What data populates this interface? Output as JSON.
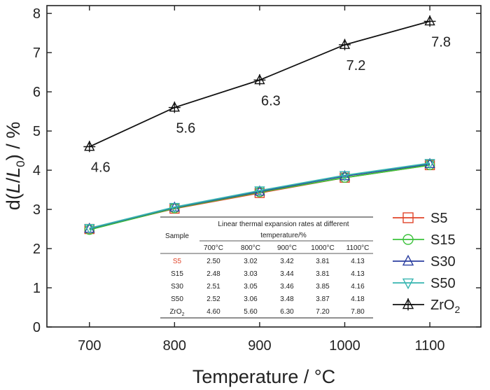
{
  "chart_data": {
    "type": "line",
    "xlabel": "Temperature / °C",
    "ylabel_parts": [
      "d(",
      "L",
      "/",
      "L",
      "0",
      ") / %"
    ],
    "x": [
      700,
      800,
      900,
      1000,
      1100
    ],
    "xticks": [
      "700",
      "800",
      "900",
      "1000",
      "1100"
    ],
    "yticks": [
      "0",
      "1",
      "2",
      "3",
      "4",
      "5",
      "6",
      "7",
      "8"
    ],
    "xlim": [
      650,
      1160
    ],
    "ylim": [
      0,
      8.2
    ],
    "legend_position": "bottom-right",
    "series": [
      {
        "name": "S5",
        "color": "#e0452a",
        "marker": "square",
        "values": [
          2.5,
          3.02,
          3.42,
          3.81,
          4.13
        ]
      },
      {
        "name": "S15",
        "color": "#3cc23c",
        "marker": "circle",
        "values": [
          2.48,
          3.03,
          3.44,
          3.81,
          4.13
        ]
      },
      {
        "name": "S30",
        "color": "#2b3fa0",
        "marker": "triangle-up",
        "values": [
          2.51,
          3.05,
          3.46,
          3.85,
          4.16
        ]
      },
      {
        "name": "S50",
        "color": "#36b5b0",
        "marker": "triangle-down",
        "values": [
          2.52,
          3.06,
          3.48,
          3.87,
          4.18
        ]
      },
      {
        "name": "ZrO2",
        "name_main": "ZrO",
        "name_sub": "2",
        "color": "#111111",
        "marker": "triangle-cross",
        "values": [
          4.6,
          5.6,
          6.3,
          7.2,
          7.8
        ]
      }
    ],
    "annotations": [
      "4.6",
      "5.6",
      "6.3",
      "7.2",
      "7.8"
    ],
    "table": {
      "sample_header": "Sample",
      "header_line1": "Linear thermal expansion rates at different",
      "header_line2": "temperature/%",
      "columns": [
        "700°C",
        "800°C",
        "900°C",
        "1000°C",
        "1100°C"
      ],
      "rows": [
        {
          "sample": "S5",
          "values": [
            "2.50",
            "3.02",
            "3.42",
            "3.81",
            "4.13"
          ]
        },
        {
          "sample": "S15",
          "values": [
            "2.48",
            "3.03",
            "3.44",
            "3.81",
            "4.13"
          ]
        },
        {
          "sample": "S30",
          "values": [
            "2.51",
            "3.05",
            "3.46",
            "3.85",
            "4.16"
          ]
        },
        {
          "sample": "S50",
          "values": [
            "2.52",
            "3.06",
            "3.48",
            "3.87",
            "4.18"
          ]
        },
        {
          "sample": "ZrO2",
          "sample_main": "ZrO",
          "sample_sub": "2",
          "values": [
            "4.60",
            "5.60",
            "6.30",
            "7.20",
            "7.80"
          ]
        }
      ]
    }
  }
}
